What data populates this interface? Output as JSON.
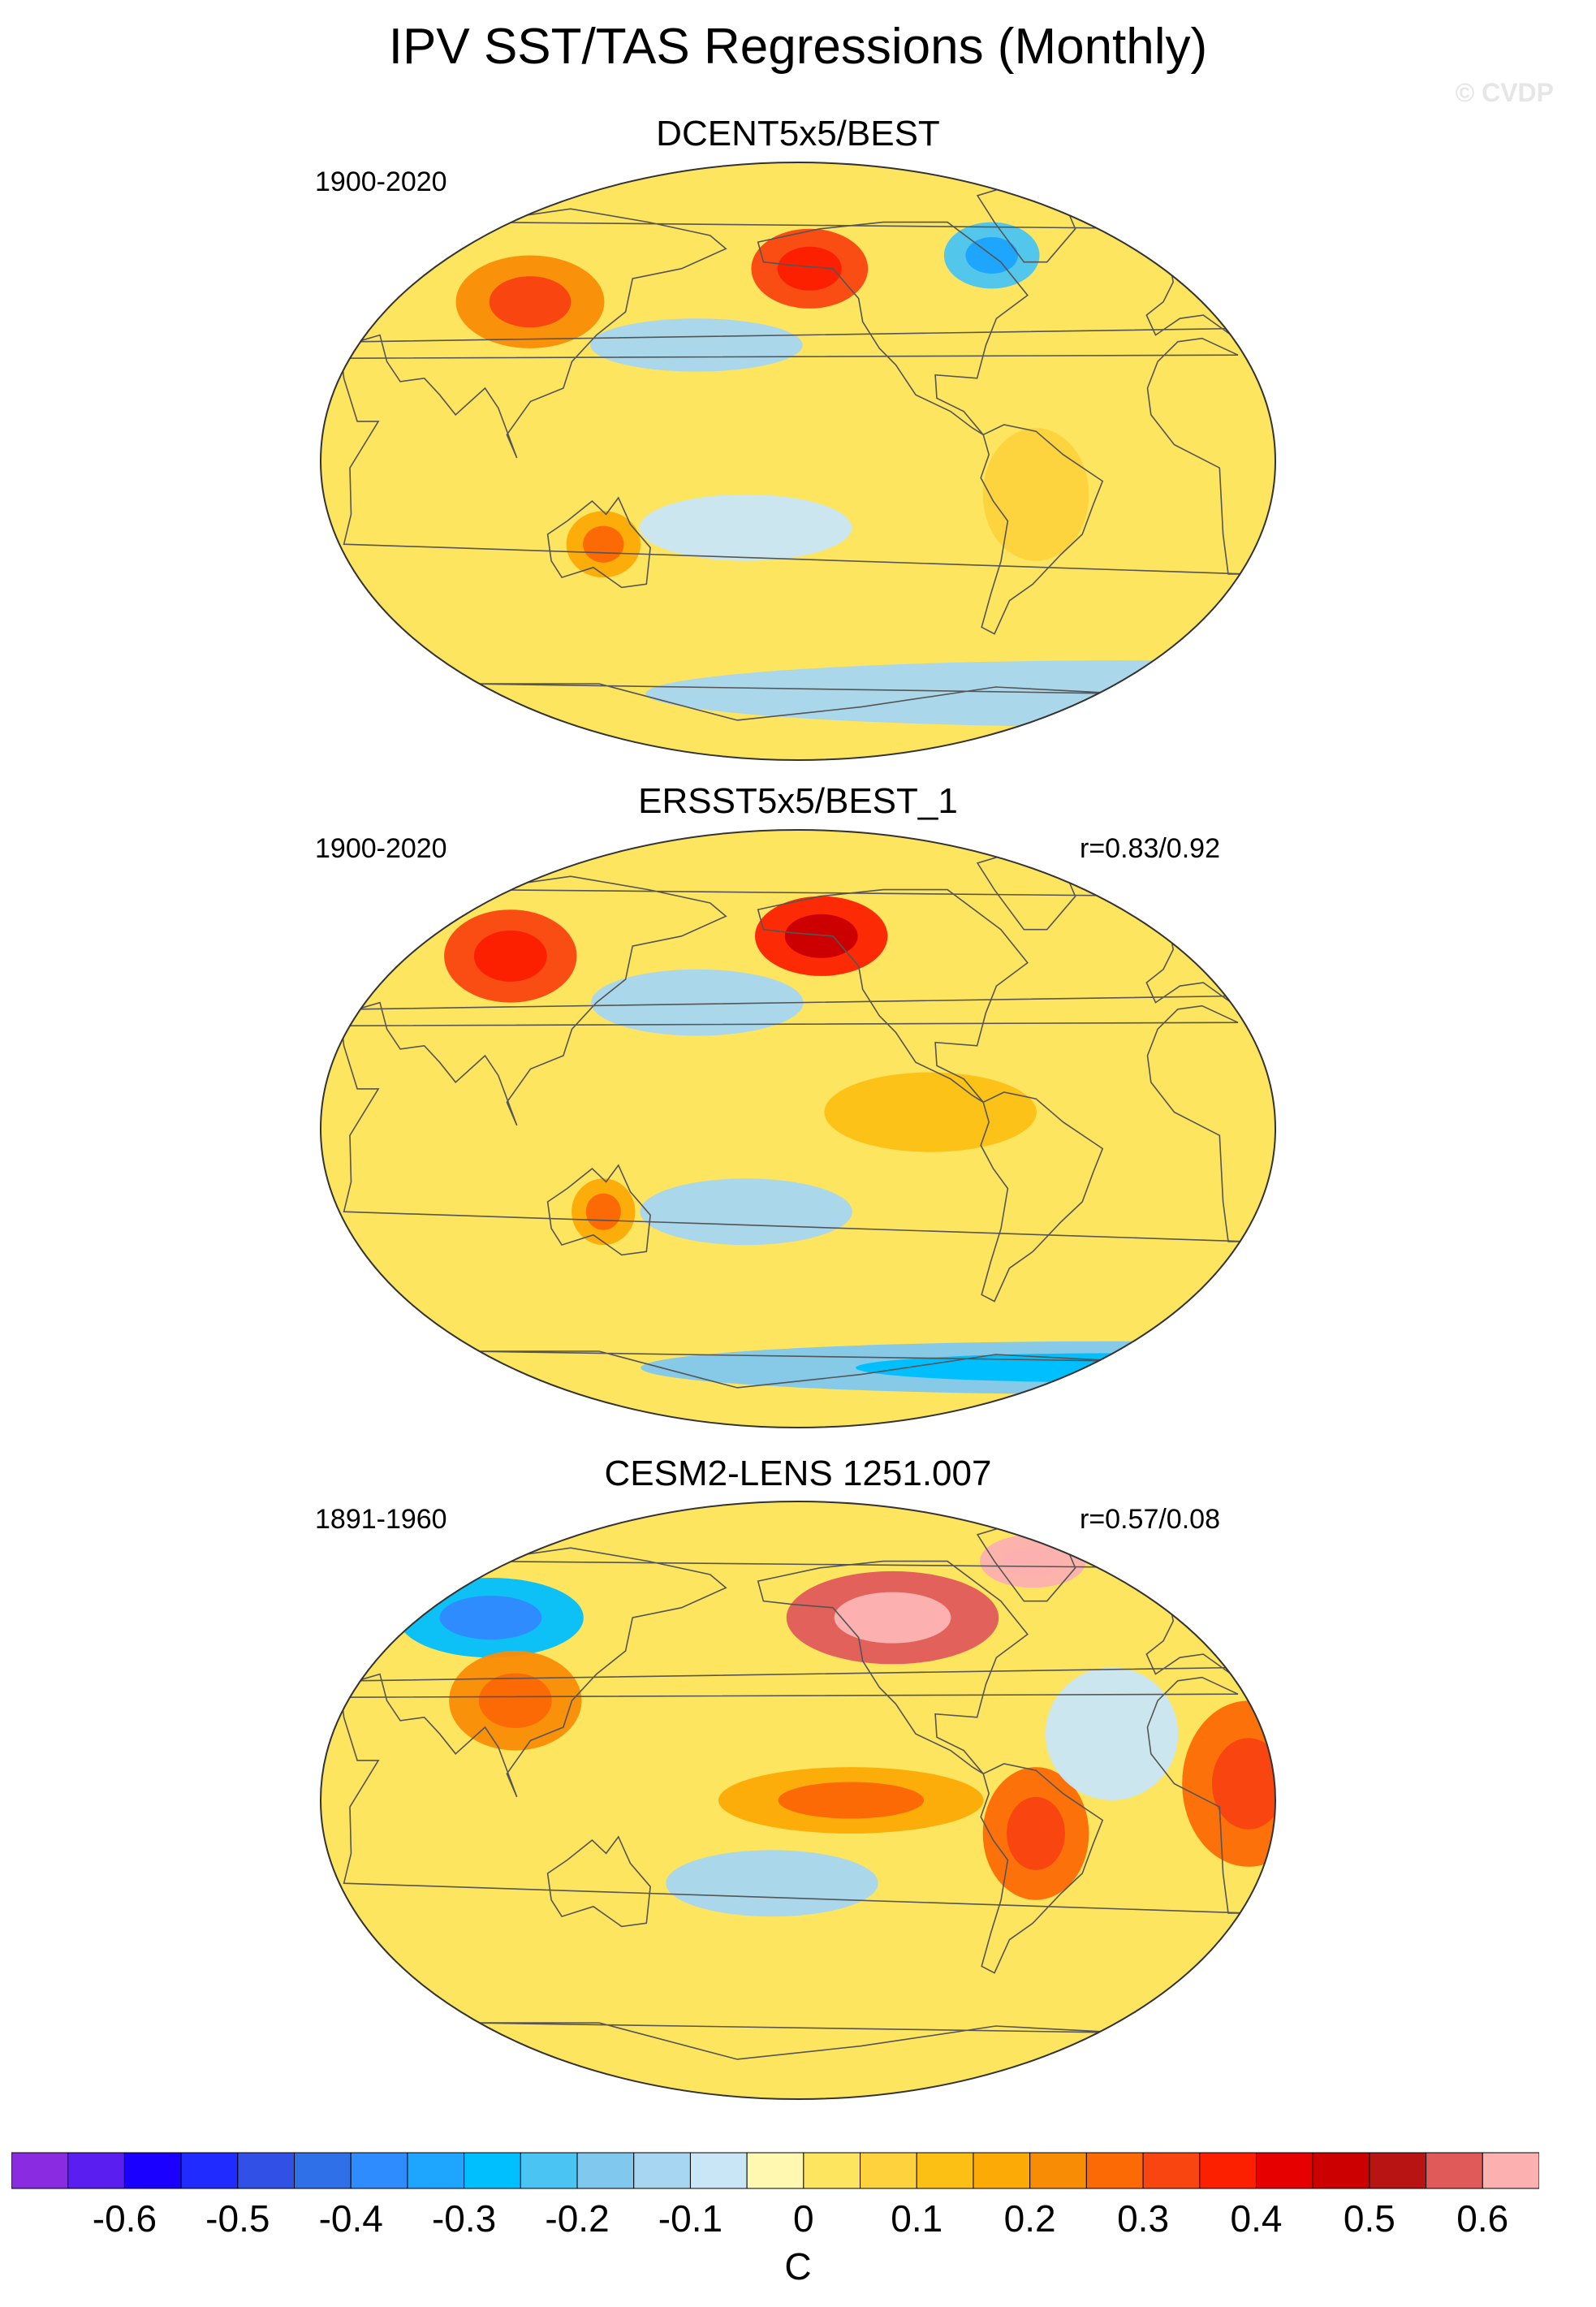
{
  "title": "IPV SST/TAS Regressions (Monthly)",
  "copyright": "© CVDP",
  "panels": [
    {
      "name": "DCENT5x5/BEST",
      "period": "1900-2020",
      "correlation": "",
      "pattern": "obs1",
      "features": [
        {
          "lon": 100,
          "lat": 48,
          "value": 0.22,
          "rlon": 28,
          "rlat": 14
        },
        {
          "lon": -145,
          "lat": 58,
          "value": 0.3,
          "rlon": 22,
          "rlat": 12
        },
        {
          "lon": -65,
          "lat": 62,
          "value": -0.25,
          "rlon": 18,
          "rlat": 10
        },
        {
          "lon": 170,
          "lat": 35,
          "value": -0.12,
          "rlon": 40,
          "rlat": 8
        },
        {
          "lon": 135,
          "lat": -25,
          "value": 0.18,
          "rlon": 14,
          "rlat": 10
        },
        {
          "lon": -170,
          "lat": -20,
          "value": -0.1,
          "rlon": 40,
          "rlat": 10
        },
        {
          "lon": 0,
          "lat": -70,
          "value": -0.15,
          "rlon": 180,
          "rlat": 10
        },
        {
          "lon": -60,
          "lat": -10,
          "value": 0.08,
          "rlon": 20,
          "rlat": 20
        }
      ]
    },
    {
      "name": "ERSST5x5/BEST_1",
      "period": "1900-2020",
      "correlation": "r=0.83/0.92",
      "pattern": "obs2",
      "features": [
        {
          "lon": 90,
          "lat": 52,
          "value": 0.3,
          "rlon": 25,
          "rlat": 14
        },
        {
          "lon": -140,
          "lat": 58,
          "value": 0.38,
          "rlon": 25,
          "rlat": 12
        },
        {
          "lon": 170,
          "lat": 38,
          "value": -0.15,
          "rlon": 40,
          "rlat": 10
        },
        {
          "lon": -100,
          "lat": 5,
          "value": 0.12,
          "rlon": 40,
          "rlat": 12
        },
        {
          "lon": 135,
          "lat": -25,
          "value": 0.18,
          "rlon": 12,
          "rlat": 10
        },
        {
          "lon": -170,
          "lat": -25,
          "value": -0.12,
          "rlon": 40,
          "rlat": 10
        },
        {
          "lon": 0,
          "lat": -72,
          "value": -0.2,
          "rlon": 180,
          "rlat": 8
        }
      ]
    },
    {
      "name": "CESM2-LENS 1251.007",
      "period": "1891-1960",
      "correlation": "r=0.57/0.08",
      "pattern": "model",
      "features": [
        {
          "lon": 80,
          "lat": 55,
          "value": -0.3,
          "rlon": 35,
          "rlat": 12
        },
        {
          "lon": -110,
          "lat": 55,
          "value": 0.55,
          "rlon": 40,
          "rlat": 14
        },
        {
          "lon": -40,
          "lat": 72,
          "value": 0.6,
          "rlon": 20,
          "rlat": 8
        },
        {
          "lon": -130,
          "lat": 0,
          "value": 0.18,
          "rlon": 50,
          "rlat": 10
        },
        {
          "lon": 20,
          "lat": 5,
          "value": 0.25,
          "rlon": 25,
          "rlat": 25
        },
        {
          "lon": -60,
          "lat": -10,
          "value": 0.25,
          "rlon": 20,
          "rlat": 20
        },
        {
          "lon": 100,
          "lat": 30,
          "value": 0.2,
          "rlon": 25,
          "rlat": 15
        },
        {
          "lon": -160,
          "lat": -25,
          "value": -0.12,
          "rlon": 40,
          "rlat": 10
        },
        {
          "lon": -30,
          "lat": 20,
          "value": -0.1,
          "rlon": 25,
          "rlat": 20
        }
      ]
    }
  ],
  "colorbar": {
    "units": "C",
    "colors": [
      "#8a2be2",
      "#5a1ef0",
      "#1a00ff",
      "#1f2bff",
      "#3050e6",
      "#2f6fe8",
      "#2e8cff",
      "#1ea6ff",
      "#00bfff",
      "#4ac4f2",
      "#80c8ee",
      "#a6d6f2",
      "#c8e6f5",
      "#fff8b0",
      "#fde55f",
      "#fdd23c",
      "#fcc014",
      "#fcaa05",
      "#f98c05",
      "#fc6a05",
      "#f94510",
      "#fc2000",
      "#e60000",
      "#cc0000",
      "#b81414",
      "#e05a5a",
      "#fcb0b0"
    ],
    "levels": [
      -0.65,
      -0.6,
      -0.55,
      -0.5,
      -0.45,
      -0.4,
      -0.35,
      -0.3,
      -0.25,
      -0.2,
      -0.15,
      -0.1,
      -0.05,
      0,
      0.05,
      0.1,
      0.15,
      0.2,
      0.25,
      0.3,
      0.35,
      0.4,
      0.45,
      0.5,
      0.55,
      0.6,
      0.65
    ],
    "tick_labels": [
      "-0.6",
      "-0.5",
      "-0.4",
      "-0.3",
      "-0.2",
      "-0.1",
      "0",
      "0.1",
      "0.2",
      "0.3",
      "0.4",
      "0.5",
      "0.6"
    ]
  }
}
